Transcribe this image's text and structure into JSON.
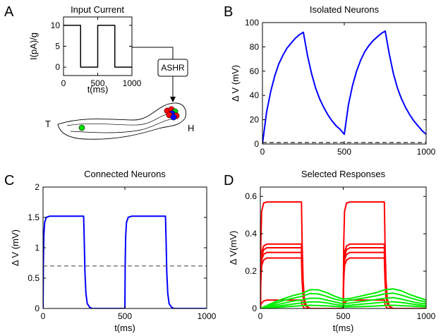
{
  "figure": {
    "panels": {
      "A": {
        "letter": "A",
        "title": "Input Current",
        "worm": {
          "tail_label": "T",
          "head_label": "H",
          "neuron_box_label": "ASHR"
        }
      },
      "B": {
        "letter": "B",
        "title": "Isolated Neurons"
      },
      "C": {
        "letter": "C",
        "title": "Connected Neurons"
      },
      "D": {
        "letter": "D",
        "title": "Selected Responses"
      }
    }
  },
  "chart_data": [
    {
      "id": "A",
      "type": "line",
      "title": "Input Current",
      "xlabel": "t(ms)",
      "ylabel": "I(pA)/g",
      "xlim": [
        0,
        1000
      ],
      "ylim": [
        -2,
        12
      ],
      "xticks": [
        0,
        500,
        1000
      ],
      "yticks": [
        0,
        5,
        10
      ],
      "grid": false,
      "series": [
        {
          "color": "#000000",
          "dashed": false,
          "x": [
            0,
            250,
            250,
            500,
            500,
            750,
            750,
            1000
          ],
          "y": [
            10,
            10,
            0,
            0,
            10,
            10,
            0,
            0
          ]
        }
      ]
    },
    {
      "id": "B",
      "type": "line",
      "title": "Isolated Neurons",
      "xlabel": "",
      "ylabel": "Δ V (mV)",
      "xlim": [
        0,
        1000
      ],
      "ylim": [
        0,
        100
      ],
      "xticks": [
        0,
        500,
        1000
      ],
      "yticks": [
        0,
        20,
        40,
        60,
        80,
        100
      ],
      "grid": false,
      "series": [
        {
          "color": "#0000ff",
          "dashed": false,
          "x": [
            0,
            25,
            50,
            75,
            100,
            125,
            150,
            175,
            200,
            225,
            250,
            275,
            300,
            325,
            350,
            375,
            400,
            425,
            450,
            475,
            500,
            525,
            550,
            575,
            600,
            625,
            650,
            675,
            700,
            725,
            750,
            775,
            800,
            825,
            850,
            875,
            900,
            925,
            950,
            975,
            1000
          ],
          "y": [
            0,
            26,
            43,
            56,
            66,
            73,
            79,
            83,
            87,
            90,
            92,
            73,
            58,
            46,
            37,
            30,
            24,
            19,
            15,
            12,
            8,
            32,
            48,
            60,
            69,
            76,
            81,
            85,
            88,
            91,
            93,
            74,
            58,
            46,
            37,
            30,
            24,
            19,
            15,
            11,
            8
          ]
        },
        {
          "color": "#000000",
          "dashed": true,
          "x": [
            0,
            1000
          ],
          "y": [
            1.2,
            1.2
          ]
        }
      ]
    },
    {
      "id": "C",
      "type": "line",
      "title": "Connected Neurons",
      "xlabel": "t(ms)",
      "ylabel": "Δ V (mV)",
      "xlim": [
        0,
        1000
      ],
      "ylim": [
        0,
        2
      ],
      "xticks": [
        0,
        500,
        1000
      ],
      "yticks": [
        0,
        0.5,
        1,
        1.5,
        2
      ],
      "grid": false,
      "series": [
        {
          "color": "#0000ff",
          "dashed": false,
          "x": [
            0,
            2,
            5,
            10,
            20,
            40,
            248,
            252,
            256,
            262,
            270,
            285,
            300,
            500,
            502,
            505,
            510,
            520,
            540,
            748,
            752,
            756,
            762,
            770,
            785,
            800,
            1000
          ],
          "y": [
            0,
            0.75,
            1.2,
            1.42,
            1.5,
            1.52,
            1.52,
            1.1,
            0.6,
            0.25,
            0.08,
            0.02,
            0,
            0,
            0.75,
            1.2,
            1.42,
            1.5,
            1.52,
            1.52,
            1.1,
            0.6,
            0.25,
            0.08,
            0.02,
            0,
            0
          ]
        },
        {
          "color": "#555555",
          "dashed": true,
          "x": [
            0,
            1000
          ],
          "y": [
            0.7,
            0.7
          ]
        }
      ]
    },
    {
      "id": "D",
      "type": "line",
      "title": "Selected Responses",
      "xlabel": "t(ms)",
      "ylabel": "Δ V(mV)",
      "xlim": [
        0,
        1000
      ],
      "ylim": [
        0,
        0.65
      ],
      "xticks": [
        0,
        500,
        1000
      ],
      "yticks": [
        0,
        0.2,
        0.4,
        0.6
      ],
      "grid": false,
      "series": [
        {
          "color": "#ff0000",
          "x": [
            0,
            3,
            8,
            20,
            40,
            248,
            252,
            258,
            266,
            280,
            300,
            500,
            503,
            508,
            520,
            540,
            748,
            752,
            758,
            766,
            780,
            800,
            1000
          ],
          "y": [
            0,
            0.35,
            0.52,
            0.565,
            0.57,
            0.57,
            0.35,
            0.15,
            0.05,
            0.01,
            0,
            0,
            0.35,
            0.52,
            0.565,
            0.57,
            0.57,
            0.35,
            0.15,
            0.05,
            0.01,
            0,
            0
          ]
        },
        {
          "color": "#ff0000",
          "x": [
            0,
            3,
            8,
            20,
            40,
            248,
            252,
            258,
            266,
            280,
            300,
            500,
            503,
            508,
            520,
            540,
            748,
            752,
            758,
            766,
            780,
            800,
            1000
          ],
          "y": [
            0,
            0.2,
            0.3,
            0.335,
            0.345,
            0.345,
            0.2,
            0.09,
            0.03,
            0.01,
            0,
            0,
            0.2,
            0.3,
            0.335,
            0.345,
            0.345,
            0.2,
            0.09,
            0.03,
            0.01,
            0,
            0
          ]
        },
        {
          "color": "#ff0000",
          "x": [
            0,
            3,
            8,
            20,
            40,
            248,
            252,
            258,
            266,
            280,
            300,
            500,
            503,
            508,
            520,
            540,
            748,
            752,
            758,
            766,
            780,
            800,
            1000
          ],
          "y": [
            0,
            0.19,
            0.28,
            0.315,
            0.325,
            0.325,
            0.19,
            0.08,
            0.03,
            0.01,
            0,
            0,
            0.19,
            0.28,
            0.315,
            0.325,
            0.325,
            0.19,
            0.08,
            0.03,
            0.01,
            0,
            0
          ]
        },
        {
          "color": "#ff0000",
          "x": [
            0,
            3,
            8,
            20,
            40,
            248,
            252,
            258,
            266,
            280,
            300,
            500,
            503,
            508,
            520,
            540,
            748,
            752,
            758,
            766,
            780,
            800,
            1000
          ],
          "y": [
            0,
            0.17,
            0.26,
            0.29,
            0.3,
            0.3,
            0.17,
            0.07,
            0.02,
            0.01,
            0,
            0,
            0.17,
            0.26,
            0.29,
            0.3,
            0.3,
            0.17,
            0.07,
            0.02,
            0.01,
            0,
            0
          ]
        },
        {
          "color": "#ff0000",
          "x": [
            0,
            3,
            8,
            20,
            40,
            248,
            252,
            258,
            266,
            280,
            300,
            500,
            503,
            508,
            520,
            540,
            748,
            752,
            758,
            766,
            780,
            800,
            1000
          ],
          "y": [
            0,
            0.15,
            0.23,
            0.26,
            0.27,
            0.27,
            0.15,
            0.06,
            0.02,
            0.01,
            0,
            0,
            0.15,
            0.23,
            0.26,
            0.27,
            0.27,
            0.15,
            0.06,
            0.02,
            0.01,
            0,
            0
          ]
        },
        {
          "color": "#ff0000",
          "x": [
            0,
            3,
            8,
            20,
            40,
            248,
            252,
            258,
            266,
            280,
            300,
            500,
            503,
            508,
            520,
            540,
            748,
            752,
            758,
            766,
            780,
            800,
            1000
          ],
          "y": [
            0,
            0.02,
            0.03,
            0.04,
            0.045,
            0.045,
            0.02,
            0.01,
            0,
            0,
            0,
            0,
            0.02,
            0.03,
            0.04,
            0.045,
            0.045,
            0.02,
            0.01,
            0,
            0,
            0,
            0
          ]
        },
        {
          "color": "#00ee00",
          "x": [
            0,
            50,
            100,
            150,
            200,
            250,
            300,
            350,
            400,
            450,
            500,
            550,
            600,
            650,
            700,
            750,
            800,
            850,
            900,
            950,
            1000
          ],
          "y": [
            0,
            0.02,
            0.04,
            0.055,
            0.07,
            0.08,
            0.1,
            0.1,
            0.085,
            0.065,
            0.05,
            0.055,
            0.065,
            0.075,
            0.085,
            0.1,
            0.105,
            0.095,
            0.075,
            0.06,
            0.045
          ]
        },
        {
          "color": "#00ee00",
          "x": [
            0,
            50,
            100,
            150,
            200,
            250,
            300,
            350,
            400,
            450,
            500,
            550,
            600,
            650,
            700,
            750,
            800,
            850,
            900,
            950,
            1000
          ],
          "y": [
            0,
            0.015,
            0.03,
            0.045,
            0.055,
            0.065,
            0.08,
            0.078,
            0.065,
            0.05,
            0.04,
            0.045,
            0.052,
            0.06,
            0.068,
            0.078,
            0.082,
            0.072,
            0.058,
            0.045,
            0.035
          ]
        },
        {
          "color": "#00ee00",
          "x": [
            0,
            50,
            100,
            150,
            200,
            250,
            300,
            350,
            400,
            450,
            500,
            550,
            600,
            650,
            700,
            750,
            800,
            850,
            900,
            950,
            1000
          ],
          "y": [
            0,
            0.01,
            0.02,
            0.03,
            0.04,
            0.045,
            0.055,
            0.055,
            0.045,
            0.035,
            0.025,
            0.03,
            0.036,
            0.042,
            0.048,
            0.055,
            0.058,
            0.05,
            0.04,
            0.03,
            0.025
          ]
        },
        {
          "color": "#00ee00",
          "x": [
            0,
            50,
            100,
            150,
            200,
            250,
            300,
            350,
            400,
            450,
            500,
            550,
            600,
            650,
            700,
            750,
            800,
            850,
            900,
            950,
            1000
          ],
          "y": [
            0,
            0.005,
            0.012,
            0.018,
            0.024,
            0.03,
            0.035,
            0.035,
            0.03,
            0.022,
            0.015,
            0.018,
            0.022,
            0.026,
            0.03,
            0.034,
            0.036,
            0.032,
            0.026,
            0.02,
            0.015
          ]
        },
        {
          "color": "#00ee00",
          "x": [
            0,
            100,
            200,
            250,
            300,
            400,
            500,
            600,
            700,
            750,
            800,
            900,
            1000
          ],
          "y": [
            0,
            0.006,
            0.012,
            0.015,
            0.017,
            0.014,
            0.008,
            0.01,
            0.013,
            0.016,
            0.017,
            0.013,
            0.008
          ]
        }
      ]
    }
  ]
}
